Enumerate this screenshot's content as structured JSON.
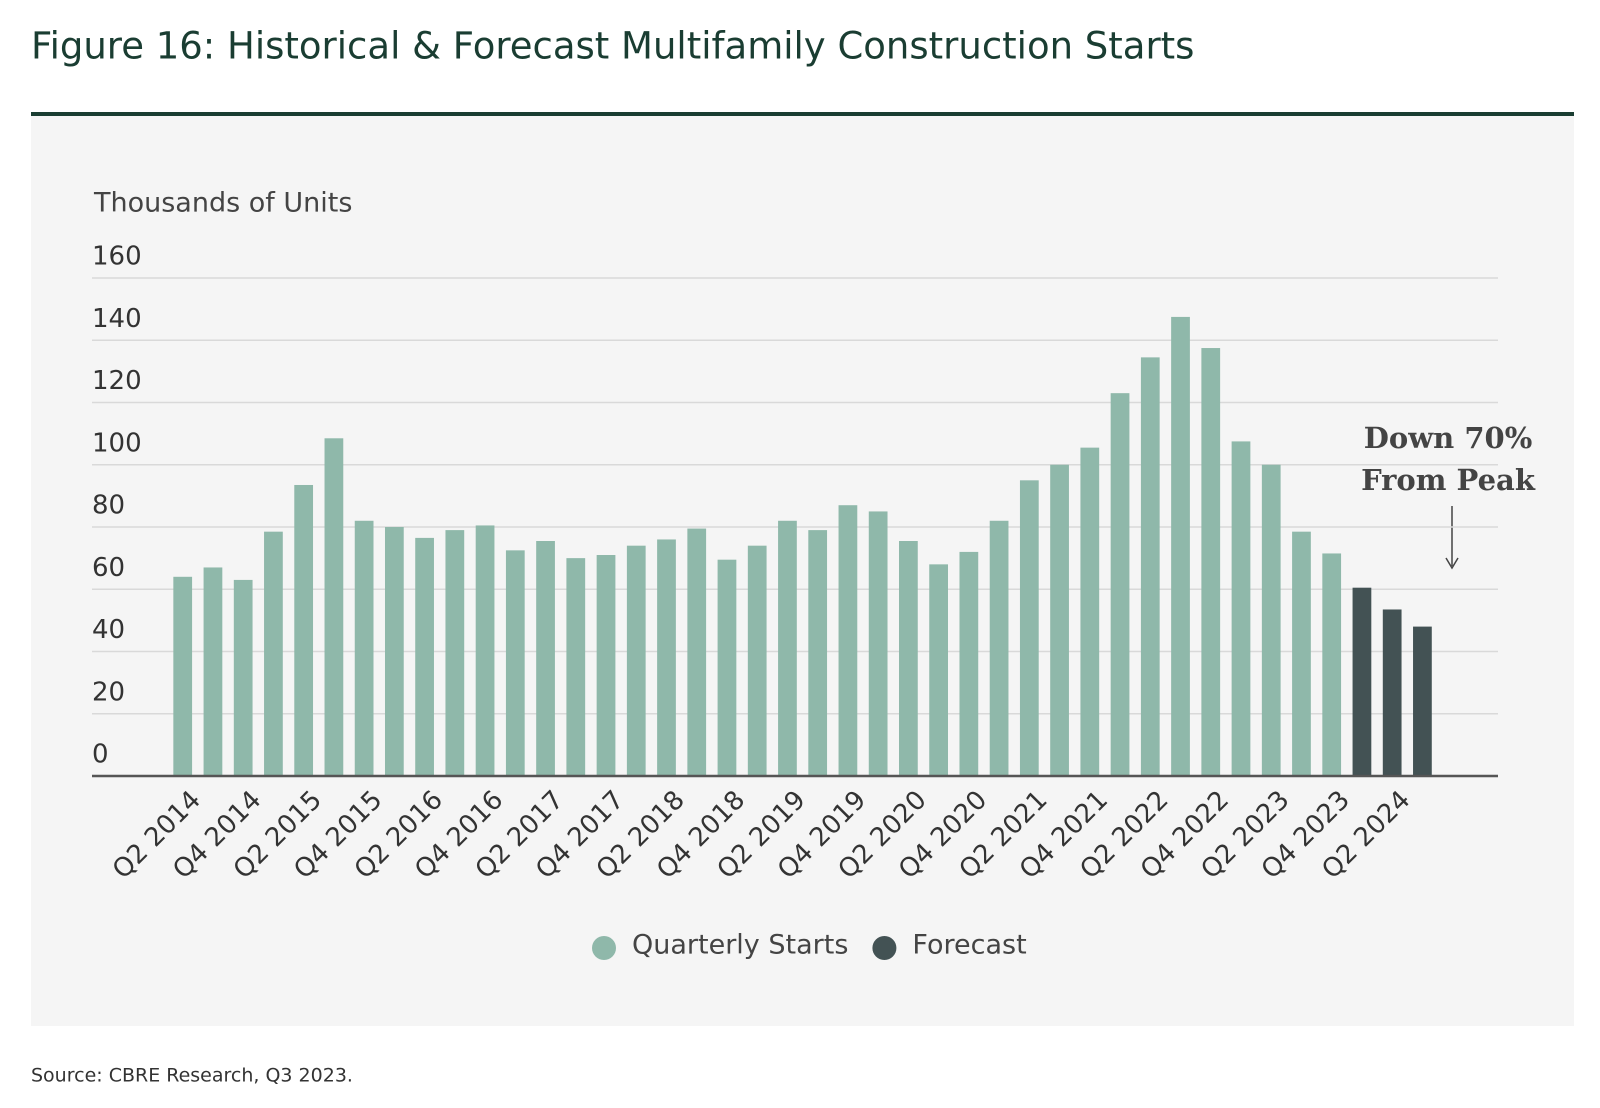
{
  "chart_data": {
    "type": "bar",
    "title": "Figure 16: Historical & Forecast Multifamily Construction Starts",
    "y_label": "Thousands of Units",
    "source": "Source: CBRE Research, Q3 2023.",
    "annotation": [
      "Down 70%",
      "From Peak"
    ],
    "categories": [
      "Q2 2014",
      null,
      "Q4 2014",
      null,
      "Q2 2015",
      null,
      "Q4 2015",
      null,
      "Q2 2016",
      null,
      "Q4 2016",
      null,
      "Q2 2017",
      null,
      "Q4 2017",
      null,
      "Q2 2018",
      null,
      "Q4 2018",
      null,
      "Q2 2019",
      null,
      "Q4 2019",
      null,
      "Q2 2020",
      null,
      "Q4 2020",
      null,
      "Q2 2021",
      null,
      "Q4 2021",
      null,
      "Q2 2022",
      null,
      "Q4 2022",
      null,
      "Q2 2023",
      null,
      "Q4 2023",
      null,
      "Q2 2024",
      null
    ],
    "series": [
      {
        "name": "Quarterly Starts",
        "color": "#8fb8aa",
        "values": [
          64,
          67,
          63,
          78.5,
          93.5,
          108.5,
          82,
          80,
          76.5,
          79,
          80.5,
          72.5,
          75.5,
          70,
          71,
          74,
          76,
          79.5,
          69.5,
          74,
          82,
          79,
          87,
          85,
          75.5,
          68,
          72,
          82,
          95,
          100,
          105.5,
          123,
          134.5,
          147.5,
          137.5,
          107.5,
          100,
          78.5,
          71.5,
          null,
          null,
          null
        ]
      },
      {
        "name": "Forecast",
        "color": "#435254",
        "values": [
          null,
          null,
          null,
          null,
          null,
          null,
          null,
          null,
          null,
          null,
          null,
          null,
          null,
          null,
          null,
          null,
          null,
          null,
          null,
          null,
          null,
          null,
          null,
          null,
          null,
          null,
          null,
          null,
          null,
          null,
          null,
          null,
          null,
          null,
          null,
          null,
          null,
          null,
          null,
          60.5,
          53.5,
          48
        ]
      }
    ],
    "ylim": [
      0,
      160
    ],
    "yticks": [
      0,
      20,
      40,
      60,
      80,
      100,
      120,
      140,
      160
    ],
    "grid": true
  }
}
